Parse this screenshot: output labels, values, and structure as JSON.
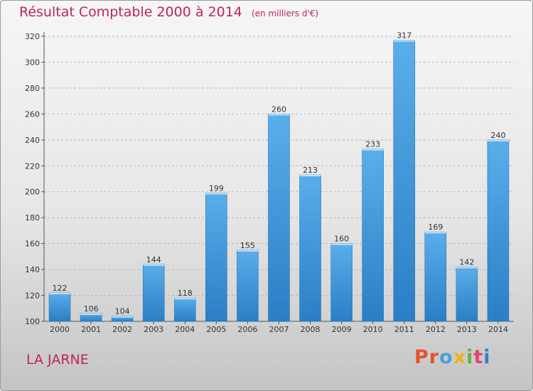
{
  "chart_data": {
    "type": "bar",
    "title": "Résultat Comptable 2000 à 2014",
    "subtitle": "(en milliers d'€)",
    "categories": [
      "2000",
      "2001",
      "2002",
      "2003",
      "2004",
      "2005",
      "2006",
      "2007",
      "2008",
      "2009",
      "2010",
      "2011",
      "2012",
      "2013",
      "2014"
    ],
    "values": [
      122,
      106,
      104,
      144,
      118,
      199,
      155,
      260,
      213,
      160,
      233,
      317,
      169,
      142,
      240
    ],
    "ylim": [
      100,
      320
    ],
    "yticks": [
      100,
      120,
      140,
      160,
      180,
      200,
      220,
      240,
      260,
      280,
      300,
      320
    ],
    "grid": true,
    "xlabel": "",
    "ylabel": ""
  },
  "footer": {
    "commune": "LA JARNE",
    "brand": "Proxiti",
    "brand_colors": [
      "#e8502d",
      "#e8502d",
      "#4a9fd8",
      "#f0b318",
      "#6bb33a",
      "#e83f6f",
      "#2f7fc9"
    ]
  },
  "colors": {
    "accent": "#c0245a",
    "bar_top": "#5aaeea",
    "bar_bottom": "#2a7ec4"
  }
}
